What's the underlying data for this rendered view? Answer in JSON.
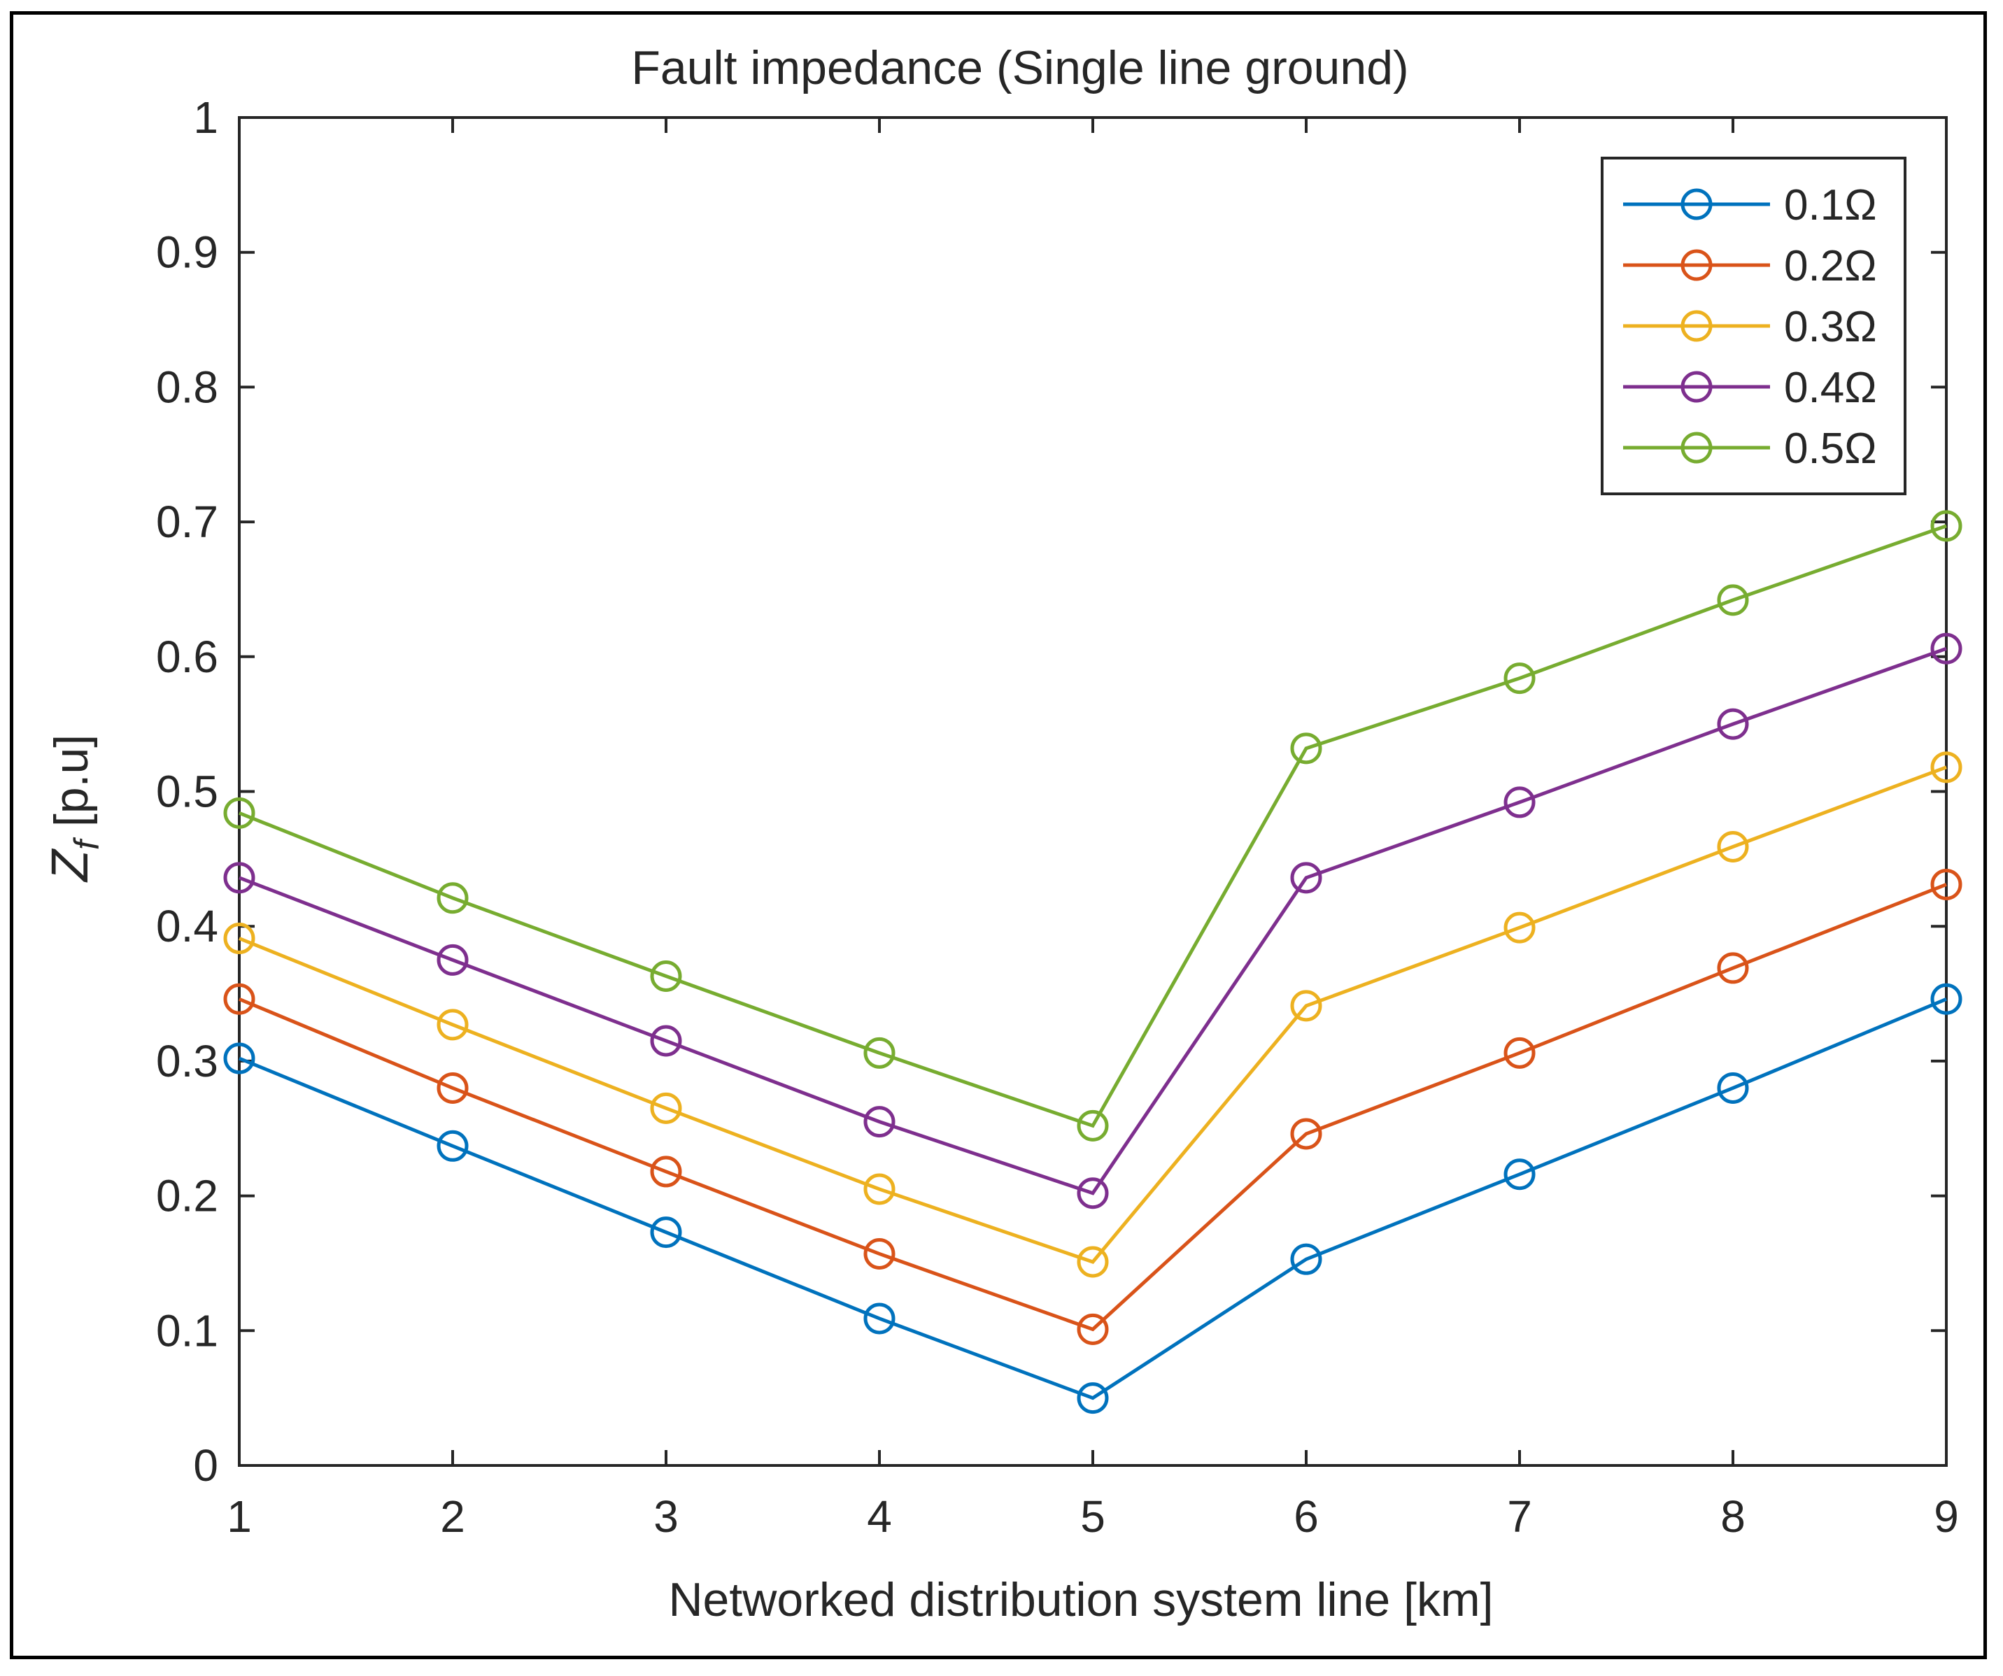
{
  "chart_data": {
    "type": "line",
    "title": "Fault impedance (Single line ground)",
    "xlabel": "Networked distribution system line [km]",
    "ylabel_main": "Z",
    "ylabel_sub": "f",
    "ylabel_rest": " [p.u]",
    "xlim": [
      1,
      9
    ],
    "ylim": [
      0,
      1
    ],
    "x": [
      1,
      2,
      3,
      4,
      5,
      6,
      7,
      8,
      9
    ],
    "xticks": [
      "1",
      "2",
      "3",
      "4",
      "5",
      "6",
      "7",
      "8",
      "9"
    ],
    "yticks": [
      "0",
      "0.1",
      "0.2",
      "0.3",
      "0.4",
      "0.5",
      "0.6",
      "0.7",
      "0.8",
      "0.9",
      "1"
    ],
    "grid": false,
    "legend_position": "top-right",
    "series": [
      {
        "name": "0.1Ω",
        "color": "#0072BD",
        "values": [
          0.302,
          0.237,
          0.173,
          0.109,
          0.05,
          0.153,
          0.216,
          0.28,
          0.346
        ]
      },
      {
        "name": "0.2Ω",
        "color": "#D95319",
        "values": [
          0.346,
          0.28,
          0.218,
          0.157,
          0.101,
          0.246,
          0.306,
          0.369,
          0.431
        ]
      },
      {
        "name": "0.3Ω",
        "color": "#EDB120",
        "values": [
          0.391,
          0.327,
          0.265,
          0.205,
          0.151,
          0.341,
          0.399,
          0.459,
          0.518
        ]
      },
      {
        "name": "0.4Ω",
        "color": "#7E2F8E",
        "values": [
          0.436,
          0.375,
          0.315,
          0.255,
          0.202,
          0.436,
          0.492,
          0.55,
          0.606
        ]
      },
      {
        "name": "0.5Ω",
        "color": "#77AC30",
        "values": [
          0.484,
          0.421,
          0.363,
          0.306,
          0.252,
          0.532,
          0.584,
          0.642,
          0.697
        ]
      }
    ]
  }
}
